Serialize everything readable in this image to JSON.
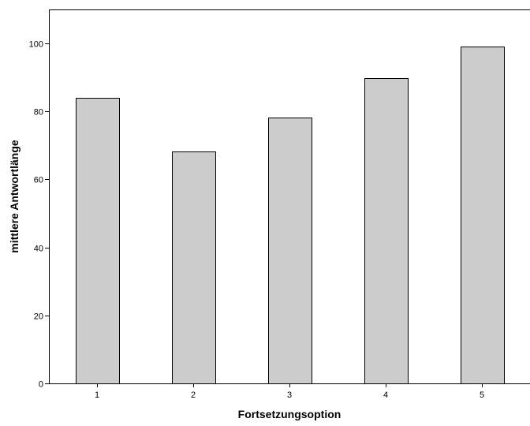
{
  "chart_data": {
    "type": "bar",
    "categories": [
      "1",
      "2",
      "3",
      "4",
      "5"
    ],
    "values": [
      84,
      68.3,
      78.3,
      89.8,
      99
    ],
    "xlabel": "Fortsetzungsoption",
    "ylabel": "mittlere Antwortlänge",
    "ylim": [
      0,
      110
    ],
    "yticks": [
      0,
      20,
      40,
      60,
      80,
      100
    ],
    "grid": false,
    "colors": {
      "bar_fill": "#cccccc",
      "bar_stroke": "#000000",
      "axis": "#000000"
    }
  }
}
